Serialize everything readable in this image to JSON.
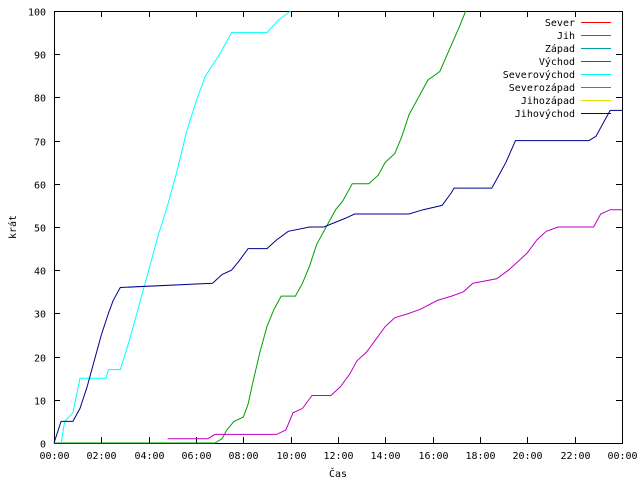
{
  "chart_data": {
    "type": "line",
    "title": "",
    "xlabel": "Čas",
    "ylabel": "krát",
    "xlim": [
      0,
      24
    ],
    "ylim": [
      0,
      100
    ],
    "grid": false,
    "legend_position": "top-right",
    "x_ticks": [
      {
        "value": 0,
        "label": "00:00"
      },
      {
        "value": 2,
        "label": "02:00"
      },
      {
        "value": 4,
        "label": "04:00"
      },
      {
        "value": 6,
        "label": "06:00"
      },
      {
        "value": 8,
        "label": "08:00"
      },
      {
        "value": 10,
        "label": "10:00"
      },
      {
        "value": 12,
        "label": "12:00"
      },
      {
        "value": 14,
        "label": "14:00"
      },
      {
        "value": 16,
        "label": "16:00"
      },
      {
        "value": 18,
        "label": "18:00"
      },
      {
        "value": 20,
        "label": "20:00"
      },
      {
        "value": 22,
        "label": "22:00"
      },
      {
        "value": 24,
        "label": "00:00"
      }
    ],
    "y_ticks": [
      {
        "value": 0,
        "label": "0"
      },
      {
        "value": 10,
        "label": "10"
      },
      {
        "value": 20,
        "label": "20"
      },
      {
        "value": 30,
        "label": "30"
      },
      {
        "value": 40,
        "label": "40"
      },
      {
        "value": 50,
        "label": "50"
      },
      {
        "value": 60,
        "label": "60"
      },
      {
        "value": 70,
        "label": "70"
      },
      {
        "value": 80,
        "label": "80"
      },
      {
        "value": 90,
        "label": "90"
      },
      {
        "value": 100,
        "label": "100"
      }
    ],
    "series": [
      {
        "name": "Sever",
        "color": "#ff0000",
        "points": []
      },
      {
        "name": "Jih",
        "color": "#00a000",
        "points": [
          [
            0,
            0
          ],
          [
            6.8,
            0
          ],
          [
            7.1,
            1
          ],
          [
            7.3,
            3
          ],
          [
            7.6,
            5
          ],
          [
            8.0,
            6
          ],
          [
            8.2,
            9
          ],
          [
            8.4,
            14
          ],
          [
            8.7,
            21
          ],
          [
            9.0,
            27
          ],
          [
            9.3,
            31
          ],
          [
            9.6,
            34
          ],
          [
            10.2,
            34
          ],
          [
            10.5,
            37
          ],
          [
            10.8,
            41
          ],
          [
            11.1,
            46
          ],
          [
            11.5,
            50
          ],
          [
            11.9,
            54
          ],
          [
            12.2,
            56
          ],
          [
            12.6,
            60
          ],
          [
            13.3,
            60
          ],
          [
            13.7,
            62
          ],
          [
            14.0,
            65
          ],
          [
            14.4,
            67
          ],
          [
            14.7,
            71
          ],
          [
            15.0,
            76
          ],
          [
            15.4,
            80
          ],
          [
            15.8,
            84
          ],
          [
            16.3,
            86
          ],
          [
            16.7,
            91
          ],
          [
            17.1,
            96
          ],
          [
            17.4,
            100
          ]
        ]
      },
      {
        "name": "Západ",
        "color": "#00a0a0",
        "points": []
      },
      {
        "name": "Východ",
        "color": "#c000c0",
        "points": [
          [
            4.8,
            1
          ],
          [
            6.5,
            1
          ],
          [
            6.8,
            2
          ],
          [
            9.4,
            2
          ],
          [
            9.8,
            3
          ],
          [
            10.1,
            7
          ],
          [
            10.5,
            8
          ],
          [
            10.9,
            11
          ],
          [
            11.7,
            11
          ],
          [
            12.1,
            13
          ],
          [
            12.5,
            16
          ],
          [
            12.8,
            19
          ],
          [
            13.2,
            21
          ],
          [
            13.6,
            24
          ],
          [
            14.0,
            27
          ],
          [
            14.4,
            29
          ],
          [
            15.0,
            30
          ],
          [
            15.5,
            31
          ],
          [
            16.2,
            33
          ],
          [
            16.8,
            34
          ],
          [
            17.3,
            35
          ],
          [
            17.7,
            37
          ],
          [
            18.7,
            38
          ],
          [
            19.2,
            40
          ],
          [
            19.6,
            42
          ],
          [
            20.0,
            44
          ],
          [
            20.4,
            47
          ],
          [
            20.8,
            49
          ],
          [
            21.3,
            50
          ],
          [
            22.8,
            50
          ],
          [
            23.1,
            53
          ],
          [
            23.5,
            54
          ],
          [
            24,
            54
          ]
        ]
      },
      {
        "name": "Severovýchod",
        "color": "#00ffff",
        "points": [
          [
            0.3,
            0
          ],
          [
            0.45,
            5
          ],
          [
            0.8,
            7
          ],
          [
            1.1,
            15
          ],
          [
            2.2,
            15
          ],
          [
            2.3,
            17
          ],
          [
            2.8,
            17
          ],
          [
            3.2,
            24
          ],
          [
            3.6,
            32
          ],
          [
            4.0,
            40
          ],
          [
            4.4,
            48
          ],
          [
            4.8,
            55
          ],
          [
            5.2,
            63
          ],
          [
            5.6,
            72
          ],
          [
            6.0,
            79
          ],
          [
            6.4,
            85
          ],
          [
            7.0,
            90
          ],
          [
            7.5,
            95
          ],
          [
            9.0,
            95
          ],
          [
            9.5,
            98
          ],
          [
            10.0,
            100
          ]
        ]
      },
      {
        "name": "Severozápad",
        "color": "#c06000",
        "points": []
      },
      {
        "name": "Jihozápad",
        "color": "#e0e000",
        "points": []
      },
      {
        "name": "Jihovýchod",
        "color": "#000090",
        "points": [
          [
            0,
            0
          ],
          [
            0.3,
            5
          ],
          [
            0.8,
            5
          ],
          [
            1.1,
            8
          ],
          [
            1.4,
            13
          ],
          [
            1.7,
            19
          ],
          [
            2.0,
            25
          ],
          [
            2.3,
            30
          ],
          [
            2.5,
            33
          ],
          [
            2.8,
            36
          ],
          [
            6.7,
            37
          ],
          [
            7.1,
            39
          ],
          [
            7.5,
            40
          ],
          [
            7.8,
            42
          ],
          [
            8.2,
            45
          ],
          [
            9.0,
            45
          ],
          [
            9.4,
            47
          ],
          [
            9.9,
            49
          ],
          [
            10.8,
            50
          ],
          [
            11.4,
            50
          ],
          [
            12.3,
            52
          ],
          [
            12.7,
            53
          ],
          [
            15.0,
            53
          ],
          [
            15.6,
            54
          ],
          [
            16.4,
            55
          ],
          [
            16.8,
            58
          ],
          [
            16.9,
            59
          ],
          [
            18.5,
            59
          ],
          [
            18.8,
            62
          ],
          [
            19.1,
            65
          ],
          [
            19.5,
            70
          ],
          [
            22.6,
            70
          ],
          [
            22.9,
            71
          ],
          [
            23.2,
            74
          ],
          [
            23.5,
            77
          ],
          [
            24,
            77
          ]
        ]
      }
    ]
  }
}
